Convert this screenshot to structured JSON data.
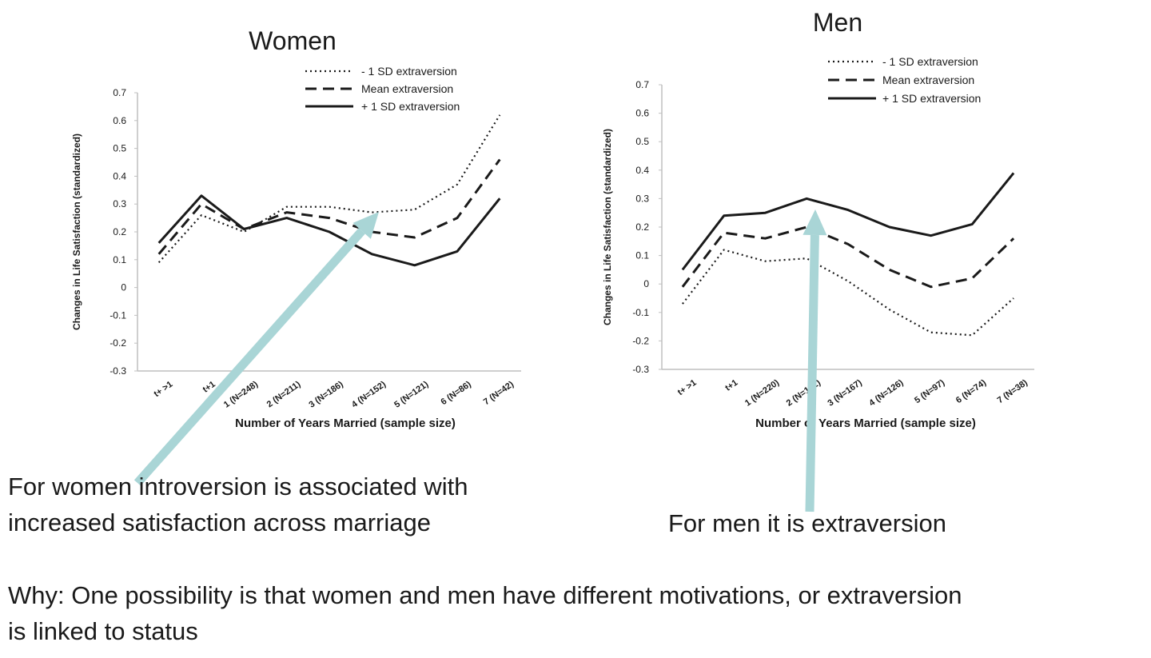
{
  "chart_data": [
    {
      "type": "line",
      "title": "Women",
      "xlabel": "Number of Years Married (sample size)",
      "ylabel": "Changes in Life Satisfaction (standardized)",
      "categories": [
        "t+ >1",
        "t+1",
        "1 (N=248)",
        "2 (N=211)",
        "3 (N=186)",
        "4 (N=152)",
        "5 (N=121)",
        "6 (N=86)",
        "7 (N=42)"
      ],
      "ylim": [
        -0.3,
        0.7
      ],
      "yticks": [
        "0.7",
        "0.6",
        "0.5",
        "0.4",
        "0.3",
        "0.2",
        "0.1",
        "0",
        "-0.1",
        "-0.2",
        "-0.3"
      ],
      "grid": false,
      "legend_position": "top-right",
      "series": [
        {
          "name": "- 1 SD extraversion",
          "style": "dotted",
          "values": [
            0.09,
            0.26,
            0.2,
            0.29,
            0.29,
            0.27,
            0.28,
            0.37,
            0.62
          ]
        },
        {
          "name": "Mean extraversion",
          "style": "dashed",
          "values": [
            0.12,
            0.3,
            0.21,
            0.27,
            0.25,
            0.2,
            0.18,
            0.25,
            0.46
          ]
        },
        {
          "name": "+ 1 SD extraversion",
          "style": "solid",
          "values": [
            0.16,
            0.33,
            0.21,
            0.25,
            0.2,
            0.12,
            0.08,
            0.13,
            0.32
          ]
        }
      ]
    },
    {
      "type": "line",
      "title": "Men",
      "xlabel": "Number of Years Married (sample size)",
      "ylabel": "Changes in Life Satisfaction (standardized)",
      "categories": [
        "t+ >1",
        "t+1",
        "1 (N=220)",
        "2 (N=192)",
        "3 (N=167)",
        "4 (N=126)",
        "5 (N=97)",
        "6 (N=74)",
        "7 (N=38)"
      ],
      "ylim": [
        -0.3,
        0.7
      ],
      "yticks": [
        "0.7",
        "0.6",
        "0.5",
        "0.4",
        "0.3",
        "0.2",
        "0.1",
        "0",
        "-0.1",
        "-0.2",
        "-0.3"
      ],
      "grid": false,
      "legend_position": "top-right",
      "series": [
        {
          "name": "- 1 SD extraversion",
          "style": "dotted",
          "values": [
            -0.07,
            0.12,
            0.08,
            0.09,
            0.01,
            -0.09,
            -0.17,
            -0.18,
            -0.05
          ]
        },
        {
          "name": "Mean extraversion",
          "style": "dashed",
          "values": [
            -0.01,
            0.18,
            0.16,
            0.2,
            0.14,
            0.05,
            -0.01,
            0.02,
            0.16
          ]
        },
        {
          "name": "+ 1 SD extraversion",
          "style": "solid",
          "values": [
            0.05,
            0.24,
            0.25,
            0.3,
            0.26,
            0.2,
            0.17,
            0.21,
            0.39
          ]
        }
      ]
    }
  ],
  "annotations": {
    "women_caption": "For women introversion is associated with\nincreased satisfaction across marriage",
    "men_caption": "For men it is extraversion",
    "why_caption": "Why: One possibility is that women and men have different motivations, or extraversion\nis linked to status",
    "arrow_color": "#a9d5d6"
  },
  "colors": {
    "line": "#1a1a1a",
    "axis": "#bfbfbf",
    "text": "#1a1a1a"
  }
}
